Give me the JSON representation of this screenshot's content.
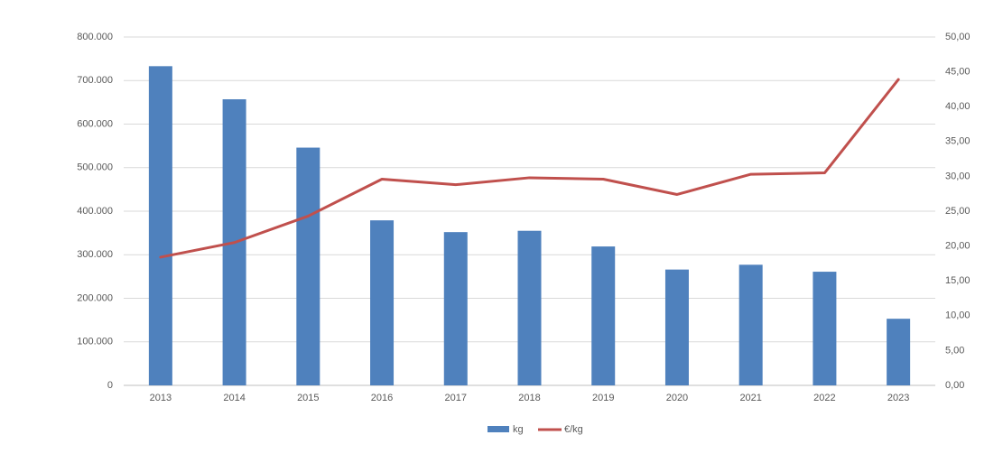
{
  "chart_data": {
    "type": "bar",
    "categories": [
      "2013",
      "2014",
      "2015",
      "2016",
      "2017",
      "2018",
      "2019",
      "2020",
      "2021",
      "2022",
      "2023"
    ],
    "series": [
      {
        "name": "kg",
        "type": "bar",
        "axis": "left",
        "color": "#4F81BD",
        "values": [
          733000,
          657000,
          546000,
          379000,
          352000,
          355000,
          319000,
          266000,
          277000,
          261000,
          153000
        ]
      },
      {
        "name": "€/kg",
        "type": "line",
        "axis": "right",
        "color": "#C0504D",
        "values": [
          18.4,
          20.5,
          24.3,
          29.6,
          28.8,
          29.8,
          29.6,
          27.4,
          30.3,
          30.5,
          43.9
        ]
      }
    ],
    "y_left": {
      "ylim": [
        0,
        800000
      ],
      "tick_labels": [
        "0",
        "100.000",
        "200.000",
        "300.000",
        "400.000",
        "500.000",
        "600.000",
        "700.000",
        "800.000"
      ]
    },
    "y_right": {
      "ylim": [
        0,
        50
      ],
      "tick_labels": [
        "0,00",
        "5,00",
        "10,00",
        "15,00",
        "20,00",
        "25,00",
        "30,00",
        "35,00",
        "40,00",
        "45,00",
        "50,00"
      ]
    },
    "grid": true,
    "legend_position": "bottom",
    "title": "",
    "xlabel": "",
    "ylabel": ""
  }
}
